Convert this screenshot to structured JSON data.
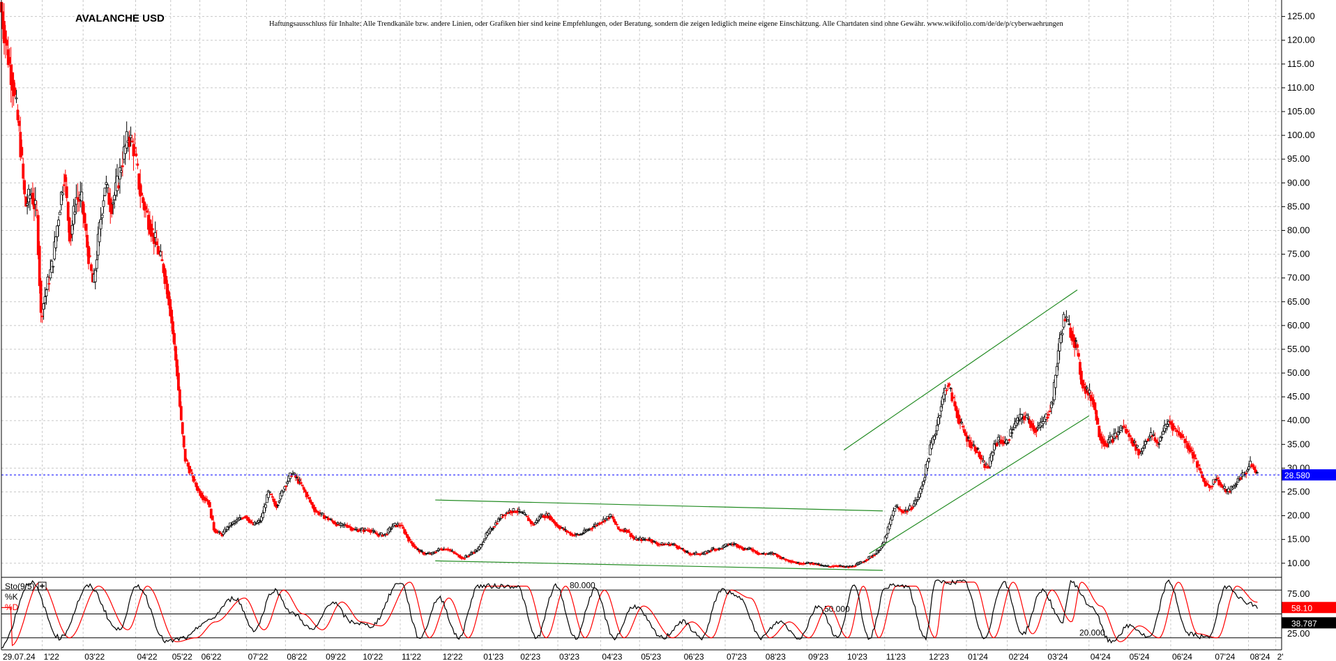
{
  "chart_data": [
    {
      "type": "candlestick",
      "title": "AVALANCHE USD",
      "disclaimer": "Haftungsausschluss für Inhalte: Alle Trendkanäle bzw. andere Linien, oder Grafiken hier sind keine Empfehlungen, oder Beratung, sondern die zeigen lediglich meine eigene Einschätzung. Alle Chartdaten sind ohne Gewähr. www.wikifolio.com/de/de/p/cyberwaehrungen",
      "y_axis_position": "right",
      "ylim": [
        8.5,
        127
      ],
      "yticks": [
        "125.00",
        "120.00",
        "115.00",
        "110.00",
        "105.00",
        "100.00",
        "95.00",
        "90.00",
        "85.00",
        "80.00",
        "75.00",
        "70.00",
        "65.00",
        "60.00",
        "55.00",
        "50.00",
        "45.00",
        "40.00",
        "35.00",
        "30.00",
        "25.00",
        "20.00",
        "15.00",
        "10.00"
      ],
      "ytick_values": [
        125,
        120,
        115,
        110,
        105,
        100,
        95,
        90,
        85,
        80,
        75,
        70,
        65,
        60,
        55,
        50,
        45,
        40,
        35,
        30,
        25,
        20,
        15,
        10
      ],
      "xticks": [
        {
          "label": "29.07.24",
          "t": 0.0
        },
        {
          "label": "1'22",
          "t": 2.1
        },
        {
          "label": "03'22",
          "t": 4.2
        },
        {
          "label": "04'22",
          "t": 6.9
        },
        {
          "label": "05'22",
          "t": 8.7
        },
        {
          "label": "06'22",
          "t": 10.2
        },
        {
          "label": "07'22",
          "t": 12.6
        },
        {
          "label": "08'22",
          "t": 14.6
        },
        {
          "label": "09'22",
          "t": 16.6
        },
        {
          "label": "10'22",
          "t": 18.5
        },
        {
          "label": "11'22",
          "t": 20.5
        },
        {
          "label": "12'22",
          "t": 22.6
        },
        {
          "label": "01'23",
          "t": 24.7
        },
        {
          "label": "02'23",
          "t": 26.6
        },
        {
          "label": "03'23",
          "t": 28.6
        },
        {
          "label": "04'23",
          "t": 30.8
        },
        {
          "label": "05'23",
          "t": 32.8
        },
        {
          "label": "06'23",
          "t": 35.0
        },
        {
          "label": "07'23",
          "t": 37.2
        },
        {
          "label": "08'23",
          "t": 39.2
        },
        {
          "label": "09'23",
          "t": 41.4
        },
        {
          "label": "10'23",
          "t": 43.4
        },
        {
          "label": "11'23",
          "t": 45.4
        },
        {
          "label": "12'23",
          "t": 47.6
        },
        {
          "label": "01'24",
          "t": 49.6
        },
        {
          "label": "02'24",
          "t": 51.7
        },
        {
          "label": "03'24",
          "t": 53.7
        },
        {
          "label": "04'24",
          "t": 55.9
        },
        {
          "label": "05'24",
          "t": 57.9
        },
        {
          "label": "06'24",
          "t": 60.1
        },
        {
          "label": "07'24",
          "t": 62.3
        },
        {
          "label": "08'24",
          "t": 64.1
        },
        {
          "label": "2'",
          "t": 65.5
        }
      ],
      "price_path": [
        [
          0.0,
          128
        ],
        [
          0.35,
          118
        ],
        [
          0.7,
          110
        ],
        [
          1.0,
          100
        ],
        [
          1.3,
          85
        ],
        [
          1.6,
          88
        ],
        [
          1.9,
          83
        ],
        [
          2.1,
          62
        ],
        [
          2.4,
          68
        ],
        [
          2.7,
          73
        ],
        [
          3.0,
          83
        ],
        [
          3.3,
          92
        ],
        [
          3.6,
          78
        ],
        [
          3.9,
          87
        ],
        [
          4.2,
          86
        ],
        [
          4.5,
          76
        ],
        [
          4.8,
          68
        ],
        [
          5.1,
          80
        ],
        [
          5.4,
          90
        ],
        [
          5.7,
          85
        ],
        [
          6.0,
          89
        ],
        [
          6.3,
          95
        ],
        [
          6.6,
          100
        ],
        [
          6.9,
          97
        ],
        [
          7.2,
          88
        ],
        [
          7.5,
          84
        ],
        [
          7.8,
          80
        ],
        [
          8.1,
          76
        ],
        [
          8.4,
          72
        ],
        [
          8.7,
          65
        ],
        [
          8.9,
          58
        ],
        [
          9.1,
          50
        ],
        [
          9.3,
          40
        ],
        [
          9.5,
          32
        ],
        [
          9.8,
          29
        ],
        [
          10.1,
          26
        ],
        [
          10.4,
          24
        ],
        [
          10.7,
          23
        ],
        [
          11.0,
          17
        ],
        [
          11.4,
          16
        ],
        [
          11.8,
          18
        ],
        [
          12.2,
          19
        ],
        [
          12.6,
          20
        ],
        [
          13.0,
          18
        ],
        [
          13.4,
          19
        ],
        [
          13.8,
          25
        ],
        [
          14.2,
          22
        ],
        [
          14.6,
          26
        ],
        [
          15.0,
          29
        ],
        [
          15.4,
          27
        ],
        [
          15.8,
          24
        ],
        [
          16.2,
          21
        ],
        [
          16.6,
          20
        ],
        [
          17.0,
          19
        ],
        [
          17.4,
          18
        ],
        [
          17.8,
          18
        ],
        [
          18.2,
          17
        ],
        [
          18.6,
          17
        ],
        [
          19.0,
          17
        ],
        [
          19.4,
          16
        ],
        [
          19.8,
          16
        ],
        [
          20.2,
          18
        ],
        [
          20.6,
          18
        ],
        [
          21.0,
          15
        ],
        [
          21.4,
          13
        ],
        [
          21.8,
          12
        ],
        [
          22.2,
          12
        ],
        [
          22.6,
          13
        ],
        [
          23.0,
          13
        ],
        [
          23.4,
          12
        ],
        [
          23.8,
          11
        ],
        [
          24.2,
          12
        ],
        [
          24.6,
          13
        ],
        [
          25.0,
          16
        ],
        [
          25.4,
          18
        ],
        [
          25.8,
          20
        ],
        [
          26.2,
          21
        ],
        [
          26.6,
          21
        ],
        [
          27.0,
          20
        ],
        [
          27.4,
          18
        ],
        [
          27.8,
          20
        ],
        [
          28.2,
          20
        ],
        [
          28.6,
          18
        ],
        [
          29.0,
          17
        ],
        [
          29.4,
          16
        ],
        [
          29.8,
          16
        ],
        [
          30.2,
          17
        ],
        [
          30.6,
          18
        ],
        [
          31.0,
          19
        ],
        [
          31.4,
          20
        ],
        [
          31.8,
          17
        ],
        [
          32.2,
          17
        ],
        [
          32.6,
          15
        ],
        [
          33.0,
          15
        ],
        [
          33.4,
          15
        ],
        [
          33.8,
          14
        ],
        [
          34.2,
          14
        ],
        [
          34.6,
          14
        ],
        [
          35.0,
          13
        ],
        [
          35.4,
          12
        ],
        [
          35.8,
          12
        ],
        [
          36.2,
          12
        ],
        [
          36.6,
          13
        ],
        [
          37.0,
          13
        ],
        [
          37.4,
          14
        ],
        [
          37.8,
          14
        ],
        [
          38.2,
          13
        ],
        [
          38.6,
          13
        ],
        [
          39.0,
          12
        ],
        [
          39.4,
          12
        ],
        [
          39.8,
          12
        ],
        [
          40.2,
          11
        ],
        [
          40.6,
          10.5
        ],
        [
          41.0,
          10
        ],
        [
          41.4,
          10
        ],
        [
          41.8,
          10
        ],
        [
          42.2,
          9.5
        ],
        [
          42.6,
          9.3
        ],
        [
          43.0,
          9.5
        ],
        [
          43.4,
          9.2
        ],
        [
          43.8,
          9.3
        ],
        [
          44.2,
          10
        ],
        [
          44.6,
          11
        ],
        [
          45.0,
          12
        ],
        [
          45.4,
          14
        ],
        [
          45.7,
          18
        ],
        [
          46.0,
          22
        ],
        [
          46.3,
          21
        ],
        [
          46.6,
          21
        ],
        [
          46.9,
          22
        ],
        [
          47.2,
          24
        ],
        [
          47.5,
          28
        ],
        [
          47.8,
          34
        ],
        [
          48.1,
          38
        ],
        [
          48.4,
          44
        ],
        [
          48.7,
          48
        ],
        [
          49.0,
          44
        ],
        [
          49.3,
          40
        ],
        [
          49.6,
          37
        ],
        [
          49.9,
          35
        ],
        [
          50.2,
          34
        ],
        [
          50.5,
          31
        ],
        [
          50.8,
          30
        ],
        [
          51.1,
          35
        ],
        [
          51.4,
          36
        ],
        [
          51.7,
          35
        ],
        [
          52.0,
          38
        ],
        [
          52.3,
          40
        ],
        [
          52.6,
          41
        ],
        [
          52.9,
          40
        ],
        [
          53.2,
          38
        ],
        [
          53.5,
          39
        ],
        [
          53.8,
          41
        ],
        [
          54.1,
          44
        ],
        [
          54.4,
          55
        ],
        [
          54.7,
          62
        ],
        [
          55.0,
          59
        ],
        [
          55.3,
          56
        ],
        [
          55.6,
          48
        ],
        [
          55.9,
          46
        ],
        [
          56.2,
          44
        ],
        [
          56.5,
          37
        ],
        [
          56.8,
          35
        ],
        [
          57.1,
          36
        ],
        [
          57.4,
          37
        ],
        [
          57.7,
          39
        ],
        [
          58.0,
          37
        ],
        [
          58.3,
          35
        ],
        [
          58.6,
          33
        ],
        [
          58.9,
          36
        ],
        [
          59.2,
          37
        ],
        [
          59.5,
          35
        ],
        [
          59.8,
          38
        ],
        [
          60.1,
          40
        ],
        [
          60.4,
          38
        ],
        [
          60.7,
          37
        ],
        [
          61.0,
          35
        ],
        [
          61.3,
          33
        ],
        [
          61.6,
          30
        ],
        [
          61.9,
          27
        ],
        [
          62.2,
          26
        ],
        [
          62.5,
          28
        ],
        [
          62.8,
          26
        ],
        [
          63.1,
          25
        ],
        [
          63.4,
          26
        ],
        [
          63.7,
          28
        ],
        [
          64.0,
          29
        ],
        [
          64.3,
          31
        ],
        [
          64.6,
          28.58
        ]
      ],
      "last_price": "28.580",
      "trend_lines": [
        {
          "color": "#228b22",
          "points": [
            [
              22.3,
              23.3
            ],
            [
              45.3,
              21.0
            ]
          ]
        },
        {
          "color": "#228b22",
          "points": [
            [
              22.3,
              10.5
            ],
            [
              45.3,
              8.5
            ]
          ]
        },
        {
          "color": "#228b22",
          "points": [
            [
              43.3,
              33.8
            ],
            [
              55.3,
              67.5
            ]
          ]
        },
        {
          "color": "#228b22",
          "points": [
            [
              44.6,
              12.0
            ],
            [
              55.9,
              41.0
            ]
          ]
        }
      ]
    },
    {
      "type": "line",
      "indicator": "Sto(9/5)",
      "series": [
        {
          "name": "%K",
          "color": "#000000"
        },
        {
          "name": "%D",
          "color": "#ff0000"
        }
      ],
      "levels": [
        {
          "label": "80.000",
          "value": 80
        },
        {
          "label": "50.000",
          "value": 50
        },
        {
          "label": "20.000",
          "value": 20
        }
      ],
      "yticks": [
        "75.00",
        "25.00"
      ],
      "ytick_values": [
        75,
        25
      ],
      "ylim": [
        0,
        100
      ],
      "current": {
        "k": "58.10",
        "d": "38.787"
      },
      "k_path": [
        [
          0,
          10
        ],
        [
          1.5,
          90
        ],
        [
          3.0,
          20
        ],
        [
          4.5,
          85
        ],
        [
          6.0,
          30
        ],
        [
          7.0,
          85
        ],
        [
          8.5,
          15
        ],
        [
          9.5,
          20
        ],
        [
          10.5,
          40
        ],
        [
          12.0,
          70
        ],
        [
          13.0,
          30
        ],
        [
          14.0,
          80
        ],
        [
          15.0,
          50
        ],
        [
          16.0,
          30
        ],
        [
          17.0,
          65
        ],
        [
          18.0,
          40
        ],
        [
          19.0,
          35
        ],
        [
          20.5,
          90
        ],
        [
          21.5,
          20
        ],
        [
          22.5,
          70
        ],
        [
          23.5,
          20
        ],
        [
          24.5,
          85
        ],
        [
          26.5,
          85
        ],
        [
          27.5,
          20
        ],
        [
          28.5,
          85
        ],
        [
          29.5,
          20
        ],
        [
          30.5,
          80
        ],
        [
          31.5,
          20
        ],
        [
          32.5,
          60
        ],
        [
          34.0,
          20
        ],
        [
          35.0,
          40
        ],
        [
          36.0,
          20
        ],
        [
          37.0,
          80
        ],
        [
          38.0,
          70
        ],
        [
          39.0,
          20
        ],
        [
          40.0,
          40
        ],
        [
          41.0,
          20
        ],
        [
          42.0,
          60
        ],
        [
          43.0,
          20
        ],
        [
          43.8,
          85
        ],
        [
          44.6,
          20
        ],
        [
          45.5,
          85
        ],
        [
          46.5,
          85
        ],
        [
          47.5,
          20
        ],
        [
          48.0,
          90
        ],
        [
          49.5,
          90
        ],
        [
          50.5,
          20
        ],
        [
          51.5,
          90
        ],
        [
          52.5,
          25
        ],
        [
          53.5,
          80
        ],
        [
          54.5,
          40
        ],
        [
          55.0,
          90
        ],
        [
          56.0,
          60
        ],
        [
          57.0,
          15
        ],
        [
          58.0,
          35
        ],
        [
          59.0,
          20
        ],
        [
          60.0,
          90
        ],
        [
          61.0,
          25
        ],
        [
          62.0,
          20
        ],
        [
          63.0,
          85
        ],
        [
          64.0,
          65
        ],
        [
          64.6,
          58
        ]
      ]
    }
  ]
}
